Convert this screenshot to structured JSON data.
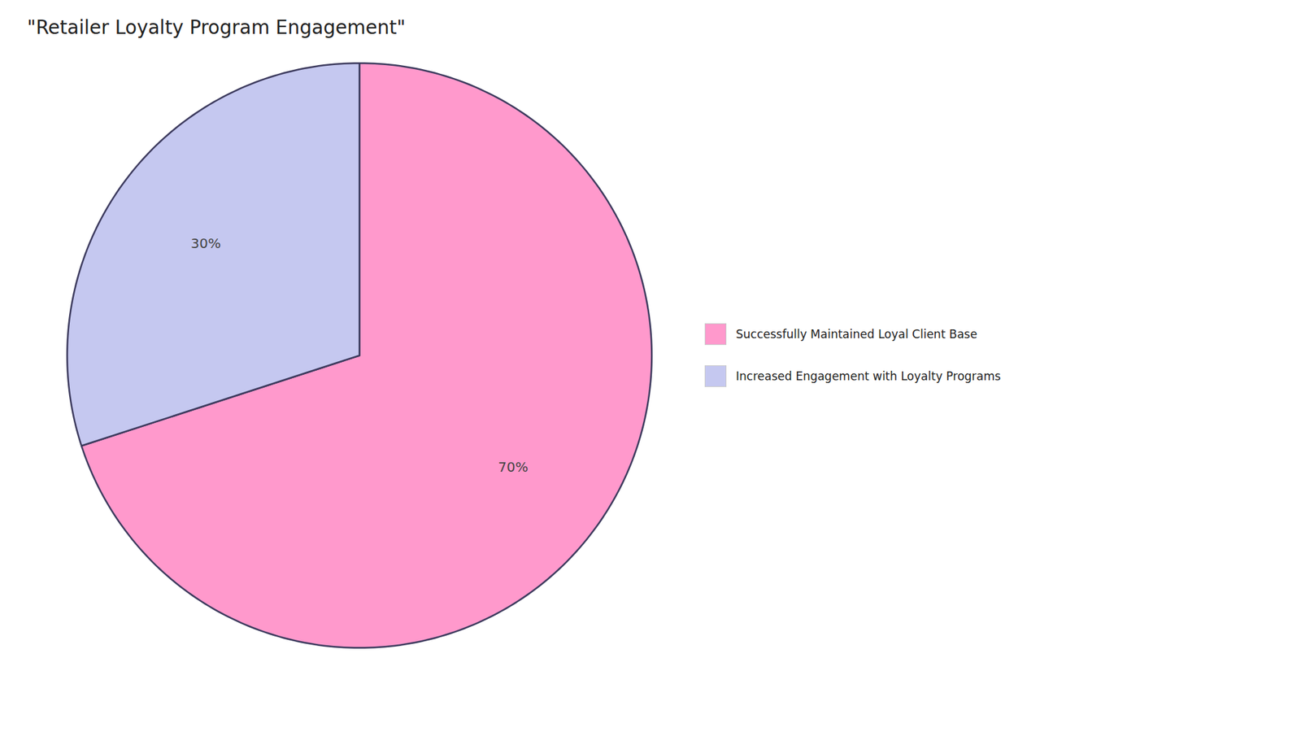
{
  "chart_data": {
    "type": "pie",
    "title": "\"Retailer Loyalty Program Engagement\"",
    "categories": [
      "Successfully Maintained Loyal Client Base",
      "Increased Engagement with Loyalty Programs"
    ],
    "values": [
      70,
      30
    ],
    "value_labels": [
      "70%",
      "30%"
    ],
    "colors": [
      "#FF99CC",
      "#C5C8F0"
    ],
    "data_labels": true,
    "legend": "right"
  }
}
